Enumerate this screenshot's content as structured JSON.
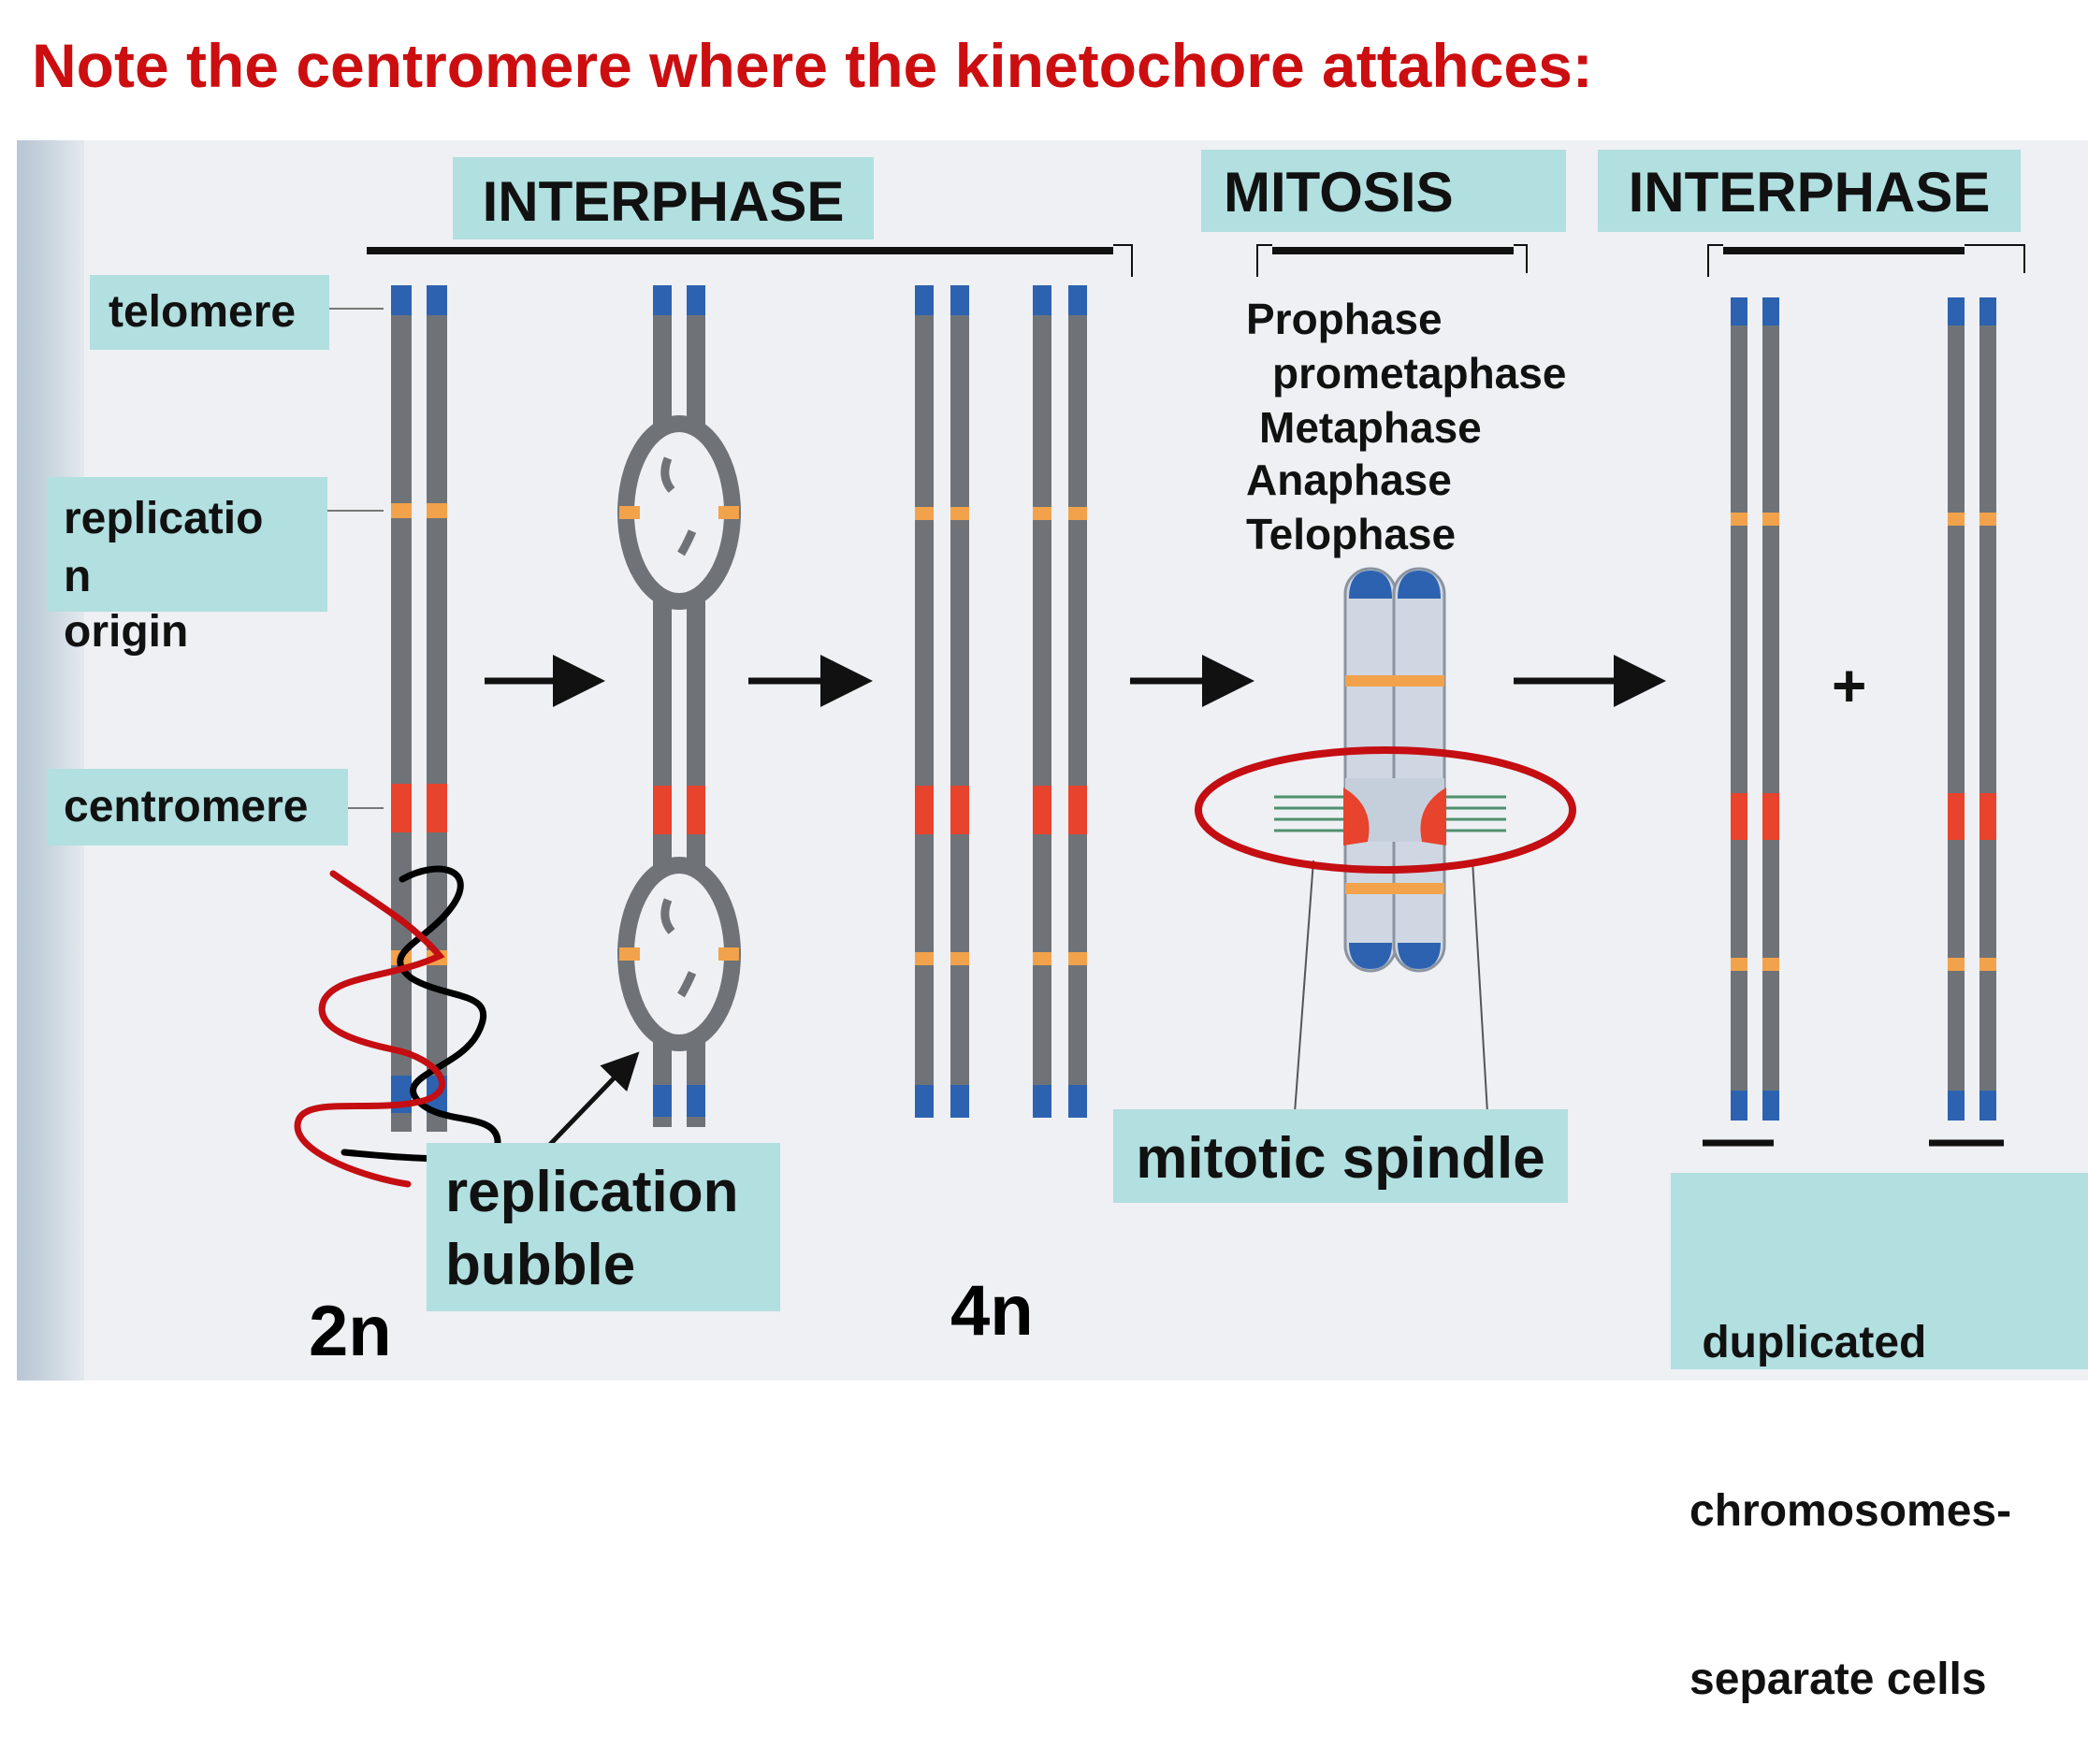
{
  "title": "Note the centromere where the kinetochore attahces:",
  "headers": {
    "interphase_left": "INTERPHASE",
    "mitosis": "MITOSIS",
    "interphase_right": "INTERPHASE"
  },
  "labels": {
    "telomere": "telomere",
    "replication_origin_1": "replicatio",
    "replication_origin_2": "n",
    "replication_origin_3": "origin",
    "centromere": "centromere",
    "replication_bubble_1": "replication",
    "replication_bubble_2": "bubble",
    "mitotic_spindle": "mitotic spindle",
    "duplicated_1": " duplicated",
    "duplicated_2": "chromosomes-",
    "duplicated_3": "separate cells"
  },
  "phases": [
    "Prophase",
    "prometaphase",
    "Metaphase",
    "Anaphase",
    "Telophase"
  ],
  "ploidy": {
    "left": "2n",
    "right": "4n"
  },
  "plus": "+",
  "colors": {
    "title": "#cc0e10",
    "label_box": "#b2dfe0",
    "strand": "#6f7378",
    "telomere": "#2d62b0",
    "origin": "#f2a24a",
    "centromere": "#e8432c",
    "annotation_red": "#c40e12"
  }
}
